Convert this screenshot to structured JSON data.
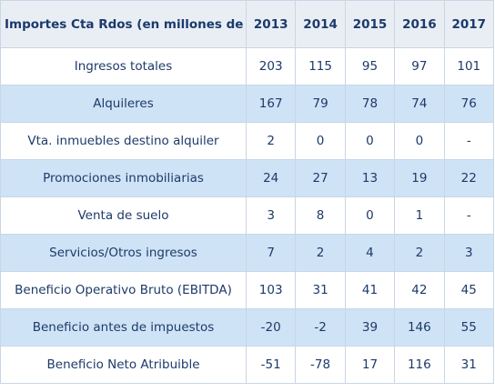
{
  "table": {
    "header_label": "Importes Cta Rdos (en millones de €)",
    "years": [
      "2013",
      "2014",
      "2015",
      "2016",
      "2017"
    ],
    "rows": [
      {
        "label": "Ingresos totales",
        "values": [
          "203",
          "115",
          "95",
          "97",
          "101"
        ],
        "shaded": false
      },
      {
        "label": "Alquileres",
        "values": [
          "167",
          "79",
          "78",
          "74",
          "76"
        ],
        "shaded": true
      },
      {
        "label": "Vta. inmuebles destino alquiler",
        "values": [
          "2",
          "0",
          "0",
          "0",
          "-"
        ],
        "shaded": false
      },
      {
        "label": "Promociones inmobiliarias",
        "values": [
          "24",
          "27",
          "13",
          "19",
          "22"
        ],
        "shaded": true
      },
      {
        "label": "Venta de suelo",
        "values": [
          "3",
          "8",
          "0",
          "1",
          "-"
        ],
        "shaded": false
      },
      {
        "label": "Servicios/Otros ingresos",
        "values": [
          "7",
          "2",
          "4",
          "2",
          "3"
        ],
        "shaded": true
      },
      {
        "label": "Beneficio Operativo Bruto (EBITDA)",
        "values": [
          "103",
          "31",
          "41",
          "42",
          "45"
        ],
        "shaded": false
      },
      {
        "label": "Beneficio antes de impuestos",
        "values": [
          "-20",
          "-2",
          "39",
          "146",
          "55"
        ],
        "shaded": true
      },
      {
        "label": "Beneficio Neto Atribuible",
        "values": [
          "-51",
          "-78",
          "17",
          "116",
          "31"
        ],
        "shaded": false
      }
    ]
  },
  "colors": {
    "header_bg": "#e9eef5",
    "band_bg": "#cfe3f6",
    "text": "#1d3a6a",
    "border": "#c9d6e6"
  }
}
